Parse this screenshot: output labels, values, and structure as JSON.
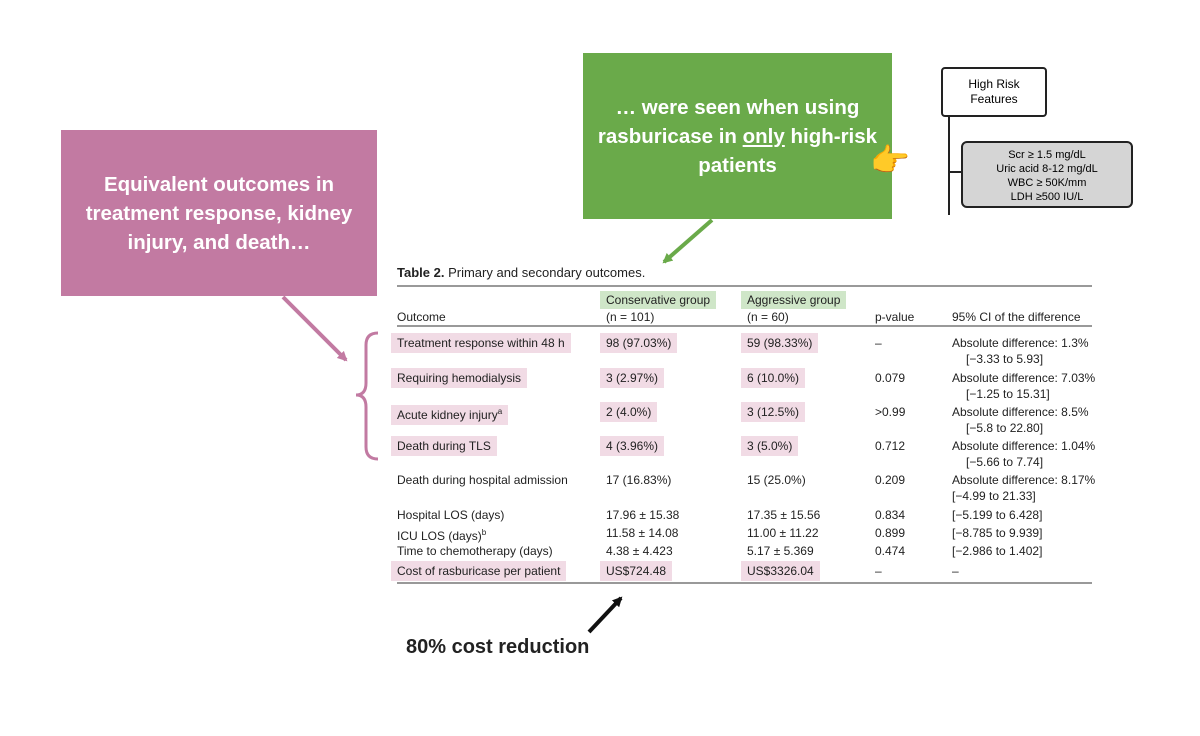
{
  "callouts": {
    "pink": "Equivalent outcomes in treatment response, kidney injury, and death…",
    "green_pre": "… were seen when using rasburicase in ",
    "green_underlined": "only",
    "green_post": " high-risk patients",
    "cost": "80% cost reduction"
  },
  "flowchart": {
    "title": "High Risk Features",
    "criteria": [
      "Scr ≥ 1.5 mg/dL",
      "Uric acid 8-12 mg/dL",
      "WBC ≥ 50K/mm",
      "LDH ≥500 IU/L"
    ]
  },
  "emoji": {
    "hand": "👉"
  },
  "table": {
    "title_bold": "Table 2.",
    "title_rest": "Primary and secondary outcomes.",
    "headers": {
      "outcome": "Outcome",
      "conservative": "Conservative group",
      "conservative_n": "(n = 101)",
      "aggressive": "Aggressive group",
      "aggressive_n": "(n = 60)",
      "pvalue": "p-value",
      "ci": "95% CI of the difference"
    },
    "rows": [
      {
        "outcome": "Treatment response within 48 h",
        "cons": "98 (97.03%)",
        "aggr": "59 (98.33%)",
        "p": "–",
        "ci1": "Absolute difference: 1.3%",
        "ci2": "[−3.33 to 5.93]"
      },
      {
        "outcome": "Requiring hemodialysis",
        "cons": "3 (2.97%)",
        "aggr": "6 (10.0%)",
        "p": "0.079",
        "ci1": "Absolute difference: 7.03%",
        "ci2": "[−1.25 to 15.31]"
      },
      {
        "outcome": "Acute kidney injury",
        "sup": "a",
        "cons": "2 (4.0%)",
        "aggr": "3 (12.5%)",
        "p": ">0.99",
        "ci1": "Absolute difference: 8.5%",
        "ci2": "[−5.8 to 22.80]"
      },
      {
        "outcome": "Death during TLS",
        "cons": "4 (3.96%)",
        "aggr": "3 (5.0%)",
        "p": "0.712",
        "ci1": "Absolute difference: 1.04%",
        "ci2": "[−5.66 to 7.74]"
      },
      {
        "outcome": "Death during hospital admission",
        "cons": "17 (16.83%)",
        "aggr": "15 (25.0%)",
        "p": "0.209",
        "ci1": "Absolute difference: 8.17%",
        "ci2": "[−4.99 to 21.33]"
      },
      {
        "outcome": "Hospital LOS (days)",
        "cons": "17.96 ± 15.38",
        "aggr": "17.35 ± 15.56",
        "p": "0.834",
        "ci1": "[−5.199 to 6.428]"
      },
      {
        "outcome": "ICU LOS (days)",
        "sup": "b",
        "cons": "11.58 ± 14.08",
        "aggr": "11.00 ± 11.22",
        "p": "0.899",
        "ci1": "[−8.785 to 9.939]"
      },
      {
        "outcome": "Time to chemotherapy (days)",
        "cons": "4.38 ± 4.423",
        "aggr": "5.17 ± 5.369",
        "p": "0.474",
        "ci1": "[−2.986 to 1.402]"
      },
      {
        "outcome": "Cost of rasburicase per patient",
        "cons": "US$724.48",
        "aggr": "US$3326.04",
        "p": "–",
        "ci1": "–"
      }
    ]
  },
  "colors": {
    "pink": "#c27aa2",
    "green": "#6aaa4a",
    "arrow_dark": "#111111"
  }
}
